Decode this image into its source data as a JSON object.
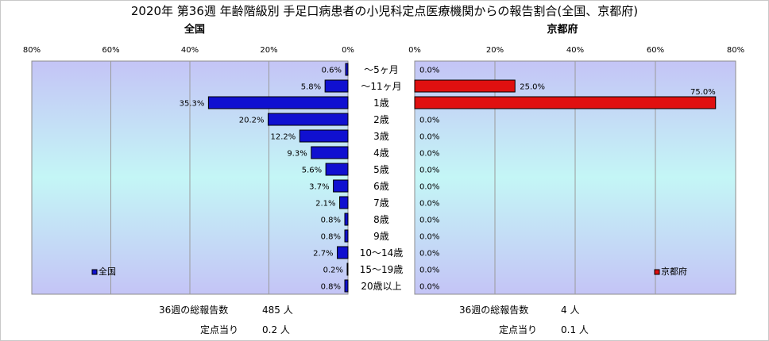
{
  "chart_data": {
    "type": "bar",
    "title": "2020年 第36週 年齢階級別 手足口病患者の小児科定点医療機関からの報告割合(全国、京都府)",
    "categories": [
      "～5ヶ月",
      "～11ヶ月",
      "1歳",
      "2歳",
      "3歳",
      "4歳",
      "5歳",
      "6歳",
      "7歳",
      "8歳",
      "9歳",
      "10～14歳",
      "15～19歳",
      "20歳以上"
    ],
    "xlim": [
      0,
      80
    ],
    "ticks": [
      "80%",
      "60%",
      "40%",
      "20%",
      "0%"
    ],
    "ticks_right": [
      "0%",
      "20%",
      "40%",
      "60%",
      "80%"
    ],
    "grid": true,
    "panels": [
      {
        "name": "全国",
        "color": "#1010d0",
        "legend": "全国",
        "legend_position": "bottom-left",
        "values": [
          0.6,
          5.8,
          35.3,
          20.2,
          12.2,
          9.3,
          5.6,
          3.7,
          2.1,
          0.8,
          0.8,
          2.7,
          0.2,
          0.8
        ],
        "labels": [
          "0.6%",
          "5.8%",
          "35.3%",
          "20.2%",
          "12.2%",
          "9.3%",
          "5.6%",
          "3.7%",
          "2.1%",
          "0.8%",
          "0.8%",
          "2.7%",
          "0.2%",
          "0.8%"
        ],
        "footer": {
          "reports_label": "36週の総報告数",
          "reports_value": "485 人",
          "per_label": "定点当り",
          "per_value": "0.2 人"
        }
      },
      {
        "name": "京都府",
        "color": "#e01010",
        "legend": "京都府",
        "legend_position": "bottom-right",
        "values": [
          0,
          25.0,
          75.0,
          0,
          0,
          0,
          0,
          0,
          0,
          0,
          0,
          0,
          0,
          0
        ],
        "labels": [
          "0.0%",
          "25.0%",
          "75.0%",
          "0.0%",
          "0.0%",
          "0.0%",
          "0.0%",
          "0.0%",
          "0.0%",
          "0.0%",
          "0.0%",
          "0.0%",
          "0.0%",
          "0.0%"
        ],
        "footer": {
          "reports_label": "36週の総報告数",
          "reports_value": "4 人",
          "per_label": "定点当り",
          "per_value": "0.1 人"
        }
      }
    ]
  }
}
